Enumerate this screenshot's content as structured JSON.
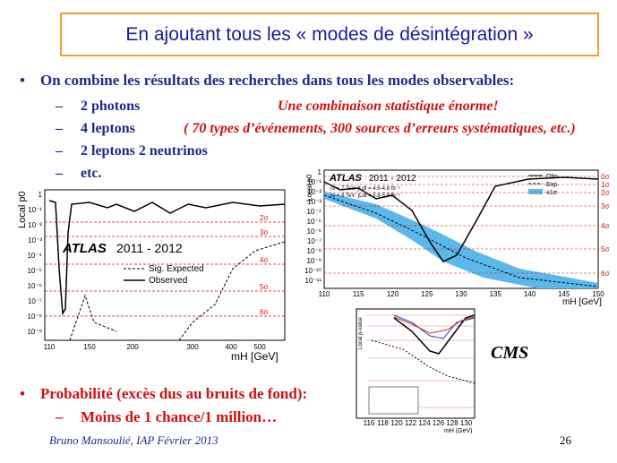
{
  "header": {
    "title": "En ajoutant tous les « modes de désintégration »"
  },
  "bullets": [
    {
      "text": "On combine les résultats des recherches dans tous les modes observables:",
      "subitems": [
        {
          "text": "2 photons",
          "note": "Une combinaison statistique énorme!"
        },
        {
          "text": "4 leptons",
          "note": "( 70  types d’événements, 300 sources d’erreurs systématiques, etc.)"
        },
        {
          "text": "2 leptons 2 neutrinos"
        },
        {
          "text": "etc."
        }
      ]
    },
    {
      "text": "Probabilité (excès dus au bruits de fond):",
      "subitems": [
        {
          "text": "Moins de 1 chance/1 million…"
        }
      ]
    }
  ],
  "figures": {
    "atlas_left": {
      "experiment": "ATLAS",
      "period": "2011 - 2012",
      "ylabel": "Local p0",
      "xlabel": "mH [GeV]",
      "yticks": [
        "1",
        "10⁻¹",
        "10⁻²",
        "10⁻³",
        "10⁻⁴",
        "10⁻⁵",
        "10⁻⁶",
        "10⁻⁷",
        "10⁻⁸",
        "10⁻⁹"
      ],
      "xticks": [
        "110",
        "150",
        "200",
        "300",
        "400",
        "500"
      ],
      "sigmas": [
        "2σ",
        "3σ",
        "4σ",
        "5σ",
        "6σ"
      ],
      "legend": [
        "Sig. Expected",
        "Observed"
      ]
    },
    "atlas_right": {
      "experiment": "ATLAS",
      "period": "2011 - 2012",
      "ylabel": "Local p0",
      "xlabel": "mH [GeV]",
      "lumi": [
        "√s = 7 TeV: ∫Ldt = 4.6-4.8 fb⁻¹",
        "√s = 8 TeV: ∫Ldt = 5.8-5.9 fb⁻¹"
      ],
      "legend": [
        "Obs.",
        "Exp.",
        "±1σ"
      ],
      "xticks": [
        "110",
        "115",
        "120",
        "125",
        "130",
        "135",
        "140",
        "145",
        "150"
      ],
      "yticks": [
        "1",
        "10⁻¹",
        "10⁻²",
        "10⁻³",
        "10⁻⁴",
        "10⁻⁵",
        "10⁻⁶",
        "10⁻⁷",
        "10⁻⁸",
        "10⁻⁹",
        "10⁻¹⁰",
        "10⁻¹¹"
      ],
      "sigmas": [
        "0σ",
        "1σ",
        "2σ",
        "3σ",
        "4σ",
        "5σ",
        "6σ"
      ]
    },
    "cms": {
      "label": "CMS",
      "ylabel": "Local p-value",
      "xlabel": "mH (GeV)",
      "xticks": [
        "116",
        "118",
        "120",
        "122",
        "124",
        "126",
        "128",
        "130"
      ]
    }
  },
  "footer": {
    "author": "Bruno Mansoulié,  IAP Février 2013",
    "page": "26"
  }
}
